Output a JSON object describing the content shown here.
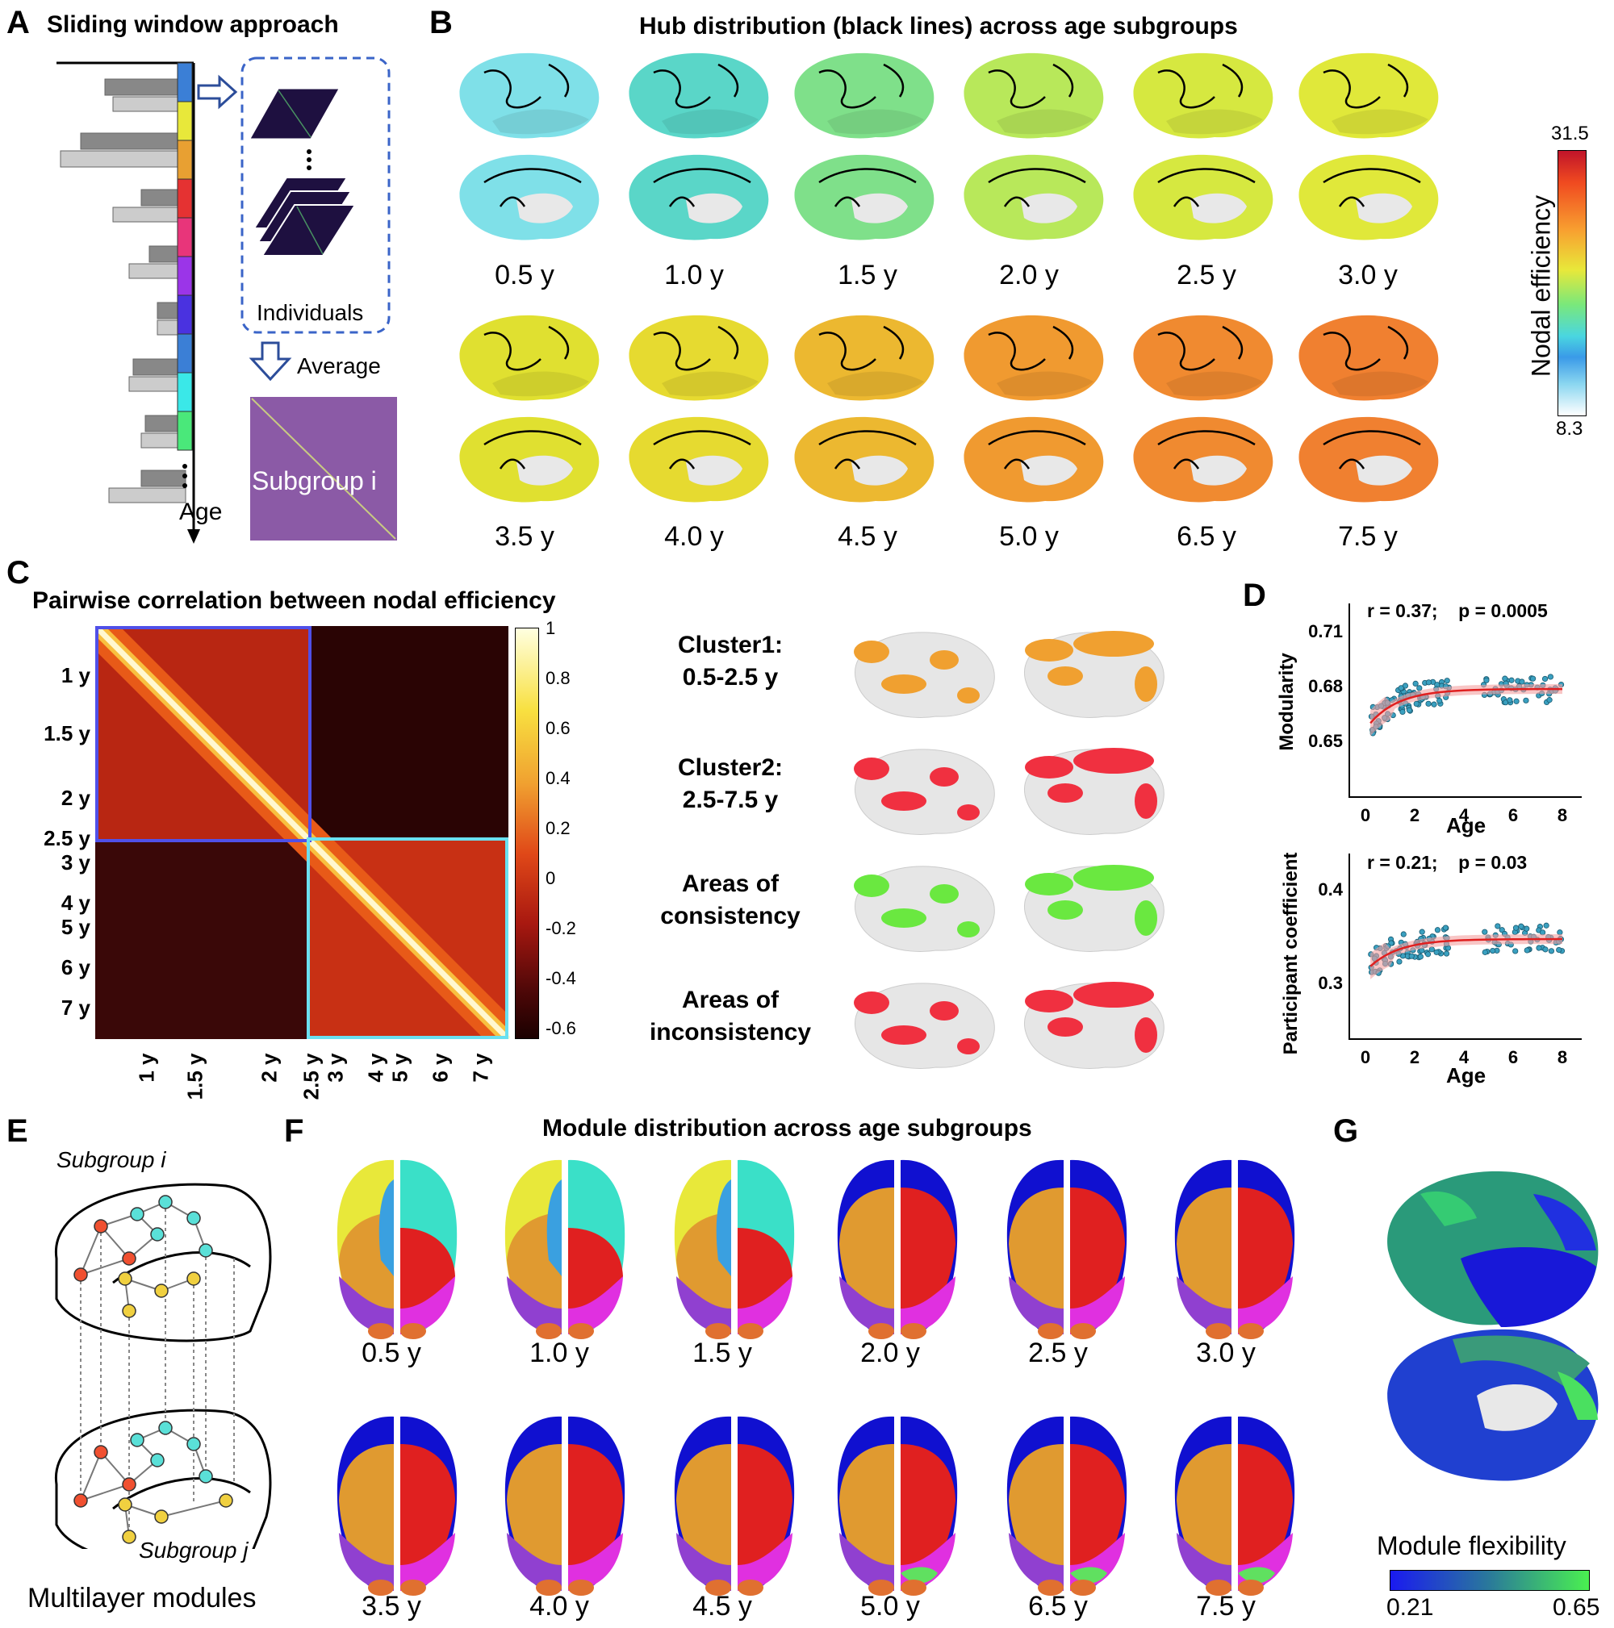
{
  "panels": {
    "A": {
      "label": "A",
      "title": "Sliding window approach",
      "individuals": "Individuals",
      "average": "Average",
      "subgroup": "Subgroup i",
      "axis": "Age",
      "window_colors": [
        "#3b7fd6",
        "#e8e83a",
        "#e8a032",
        "#e53232",
        "#e8357a",
        "#9b35e8",
        "#4a32e0",
        "#3b7fd6",
        "#3ae8e8",
        "#4ae87a"
      ]
    },
    "B": {
      "label": "B",
      "title": "Hub distribution (black lines) across age subgroups",
      "ages_row1": [
        "0.5 y",
        "1.0 y",
        "1.5 y",
        "2.0 y",
        "2.5 y",
        "3.0 y"
      ],
      "ages_row2": [
        "3.5 y",
        "4.0 y",
        "4.5 y",
        "5.0 y",
        "6.5 y",
        "7.5 y"
      ],
      "colorbar_label": "Nodal efficiency",
      "colorbar_max": "31.5",
      "colorbar_min": "8.3",
      "brain_colors_row1": [
        "#7fe0e8",
        "#5ad6c8",
        "#7fe08a",
        "#b8e85a",
        "#d6e840",
        "#e0e83a"
      ],
      "brain_colors_row2": [
        "#e0e030",
        "#e6da30",
        "#ecb830",
        "#f09a30",
        "#f08a30",
        "#f08030"
      ]
    },
    "C": {
      "label": "C",
      "title": "Pairwise correlation between nodal efficiency",
      "y_ticks": [
        "1 y",
        "1.5 y",
        "2 y",
        "2.5 y",
        "3 y",
        "4 y",
        "5 y",
        "6 y",
        "7 y"
      ],
      "x_ticks": [
        "1 y",
        "1.5 y",
        "2 y",
        "2.5 y",
        "3 y",
        "4 y",
        "5 y",
        "6 y",
        "7 y"
      ],
      "colorbar_ticks": [
        "1",
        "0.8",
        "0.6",
        "0.4",
        "0.2",
        "0",
        "-0.2",
        "-0.4",
        "-0.6"
      ],
      "cluster1_title": "Cluster1:",
      "cluster1_range": "0.5-2.5 y",
      "cluster2_title": "Cluster2:",
      "cluster2_range": "2.5-7.5 y",
      "consistency_1": "Areas of",
      "consistency_2": "consistency",
      "inconsistency_1": "Areas of",
      "inconsistency_2": "inconsistency",
      "cluster_colors": [
        "#f0a030",
        "#f03040",
        "#6ae840",
        "#f03040"
      ]
    },
    "D": {
      "label": "D",
      "top": {
        "stat": "r = 0.37;    p = 0.0005",
        "ylabel": "Modularity",
        "xlabel": "Age",
        "y_ticks": [
          "0.71",
          "0.68",
          "0.65"
        ],
        "x_ticks": [
          "0",
          "2",
          "4",
          "6",
          "8"
        ]
      },
      "bottom": {
        "stat": "r = 0.21;    p = 0.03",
        "ylabel": "Participant coefficient",
        "xlabel": "Age",
        "y_ticks": [
          "0.4",
          "0.3"
        ],
        "x_ticks": [
          "0",
          "2",
          "4",
          "6",
          "8"
        ]
      }
    },
    "E": {
      "label": "E",
      "subgroup_i": "Subgroup i",
      "subgroup_j": "Subgroup j",
      "caption": "Multilayer modules"
    },
    "F": {
      "label": "F",
      "title": "Module distribution across age subgroups",
      "ages_row1": [
        "0.5 y",
        "1.0 y",
        "1.5 y",
        "2.0 y",
        "2.5 y",
        "3.0 y"
      ],
      "ages_row2": [
        "3.5 y",
        "4.0 y",
        "4.5 y",
        "5.0 y",
        "6.5 y",
        "7.5 y"
      ]
    },
    "G": {
      "label": "G",
      "colorbar_label": "Module flexibility",
      "colorbar_min": "0.21",
      "colorbar_max": "0.65"
    }
  },
  "chart_data": [
    {
      "type": "scatter",
      "xlabel": "Age",
      "ylabel": "Modularity",
      "xlim": [
        -0.5,
        8.5
      ],
      "ylim": [
        0.63,
        0.72
      ],
      "fit": "exponential decay",
      "annotation": "r = 0.37;    p = 0.0005"
    },
    {
      "type": "scatter",
      "xlabel": "Age",
      "ylabel": "Participant coefficient",
      "xlim": [
        -0.5,
        8.5
      ],
      "ylim": [
        0.26,
        0.42
      ],
      "fit": "exponential rise",
      "annotation": "r = 0.21;    p = 0.03"
    }
  ]
}
